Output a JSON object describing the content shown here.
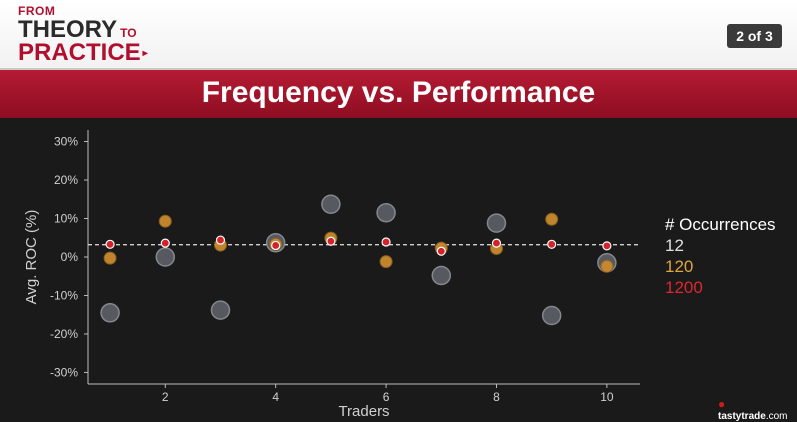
{
  "header": {
    "logo": {
      "line1": "FROM",
      "line2": "THEORY",
      "line2_suffix": "TO",
      "line3": "PRACTICE",
      "arrow": "▸"
    },
    "page_indicator": "2 of 3"
  },
  "title": "Frequency vs. Performance",
  "watermark": {
    "name": "tastytrade",
    "suffix": ".com"
  },
  "colors": {
    "accent": "#b10f2e",
    "series_12": "#5a5e64",
    "series_120": "#c88a2e",
    "series_1200": "#d4222a",
    "baseline": "#cfcfcf"
  },
  "chart_data": {
    "type": "scatter",
    "xlabel": "Traders",
    "ylabel": "Avg. ROC (%)",
    "x_ticks": [
      "2",
      "4",
      "6",
      "8",
      "10"
    ],
    "y_ticks": [
      "30%",
      "20%",
      "10%",
      "0%",
      "-10%",
      "-20%",
      "-30%"
    ],
    "xlim": [
      0.6,
      10.6
    ],
    "ylim": [
      -33,
      33
    ],
    "grid": false,
    "legend": {
      "title": "# Occurrences",
      "placement": "right",
      "entries": [
        "12",
        "120",
        "1200"
      ]
    },
    "reference_line": {
      "y": 3.2,
      "style": "dashed"
    },
    "series": [
      {
        "name": "12",
        "points": [
          {
            "x": 1,
            "y": -14.5
          },
          {
            "x": 2,
            "y": 0
          },
          {
            "x": 3,
            "y": -13.8
          },
          {
            "x": 4,
            "y": 3.7
          },
          {
            "x": 5,
            "y": 13.7
          },
          {
            "x": 6,
            "y": 11.5
          },
          {
            "x": 7,
            "y": -4.8
          },
          {
            "x": 8,
            "y": 8.8
          },
          {
            "x": 9,
            "y": -15.2
          },
          {
            "x": 10,
            "y": -1.5
          }
        ]
      },
      {
        "name": "120",
        "points": [
          {
            "x": 1,
            "y": -0.3
          },
          {
            "x": 2,
            "y": 9.3
          },
          {
            "x": 3,
            "y": 3.1
          },
          {
            "x": 4,
            "y": 3.3
          },
          {
            "x": 5,
            "y": 4.9
          },
          {
            "x": 6,
            "y": -1.2
          },
          {
            "x": 7,
            "y": 2.3
          },
          {
            "x": 8,
            "y": 2.2
          },
          {
            "x": 9,
            "y": 9.8
          },
          {
            "x": 10,
            "y": -2.4
          }
        ]
      },
      {
        "name": "1200",
        "points": [
          {
            "x": 1,
            "y": 3.3
          },
          {
            "x": 2,
            "y": 3.6
          },
          {
            "x": 3,
            "y": 4.4
          },
          {
            "x": 4,
            "y": 3.0
          },
          {
            "x": 5,
            "y": 4.1
          },
          {
            "x": 6,
            "y": 3.9
          },
          {
            "x": 7,
            "y": 1.5
          },
          {
            "x": 8,
            "y": 3.6
          },
          {
            "x": 9,
            "y": 3.3
          },
          {
            "x": 10,
            "y": 2.9
          }
        ]
      }
    ]
  }
}
